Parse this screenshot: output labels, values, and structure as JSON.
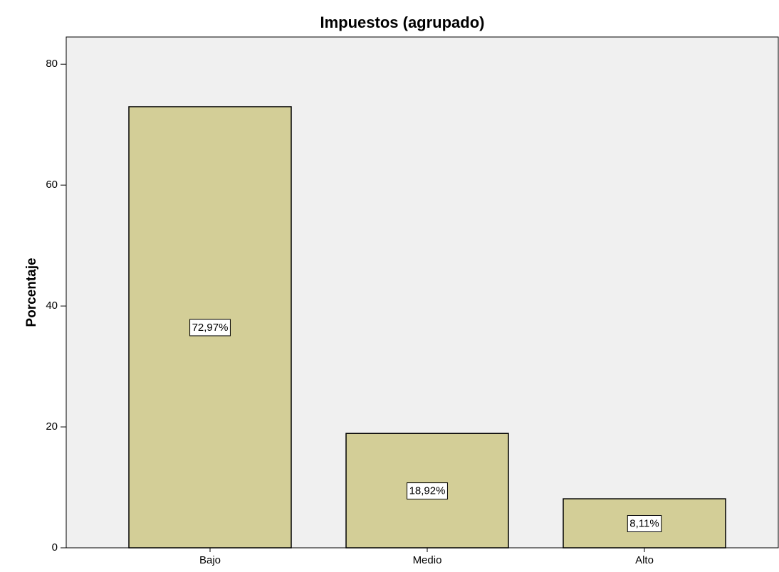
{
  "chart_data": {
    "type": "bar",
    "title": "Impuestos (agrupado)",
    "ylabel": "Porcentaje",
    "categories": [
      "Bajo",
      "Medio",
      "Alto"
    ],
    "values": [
      72.97,
      18.92,
      8.11
    ],
    "value_labels": [
      "72,97%",
      "18,92%",
      "8,11%"
    ],
    "color": "#d3ce97",
    "ylim": [
      0,
      84.5
    ],
    "yticks": [
      0,
      20,
      40,
      60,
      80
    ],
    "grid": false
  }
}
